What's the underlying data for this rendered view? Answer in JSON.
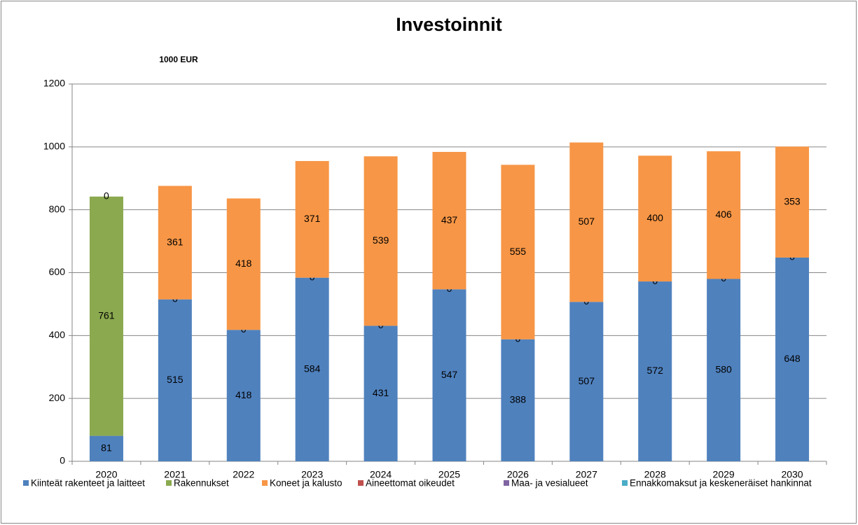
{
  "chart_data": {
    "type": "stacked_bar",
    "title": "Investoinnit",
    "subtitle": "1000 EUR",
    "categories": [
      "2020",
      "2021",
      "2022",
      "2023",
      "2024",
      "2025",
      "2026",
      "2027",
      "2028",
      "2029",
      "2030"
    ],
    "series": [
      {
        "name": "Kiinteät rakenteet ja laitteet",
        "color": "#4f81bd",
        "data_labels": true,
        "values": [
          81,
          515,
          418,
          584,
          431,
          547,
          388,
          507,
          572,
          580,
          648
        ]
      },
      {
        "name": "Rakennukset",
        "color": "#8ba94f",
        "data_labels": true,
        "values": [
          761,
          0,
          0,
          0,
          0,
          0,
          0,
          0,
          0,
          0,
          0
        ]
      },
      {
        "name": "Koneet ja kalusto",
        "color": "#f79646",
        "data_labels": true,
        "values": [
          0,
          361,
          418,
          371,
          539,
          437,
          555,
          507,
          400,
          406,
          353
        ]
      },
      {
        "name": "Aineettomat oikeudet",
        "color": "#c0504d",
        "data_labels": false,
        "values": [
          0,
          0,
          0,
          0,
          0,
          0,
          0,
          0,
          0,
          0,
          0
        ]
      },
      {
        "name": "Maa- ja vesialueet",
        "color": "#8064a2",
        "data_labels": false,
        "values": [
          0,
          0,
          0,
          0,
          0,
          0,
          0,
          0,
          0,
          0,
          0
        ]
      },
      {
        "name": "Ennakkomaksut ja keskeneräiset hankinnat",
        "color": "#4bacc6",
        "data_labels": false,
        "values": [
          0,
          0,
          0,
          0,
          0,
          0,
          0,
          0,
          0,
          0,
          0
        ]
      }
    ],
    "ylim": [
      0,
      1200
    ],
    "yticks": [
      0,
      200,
      400,
      600,
      800,
      1000,
      1200
    ],
    "grid": true,
    "legend": "bottom"
  }
}
